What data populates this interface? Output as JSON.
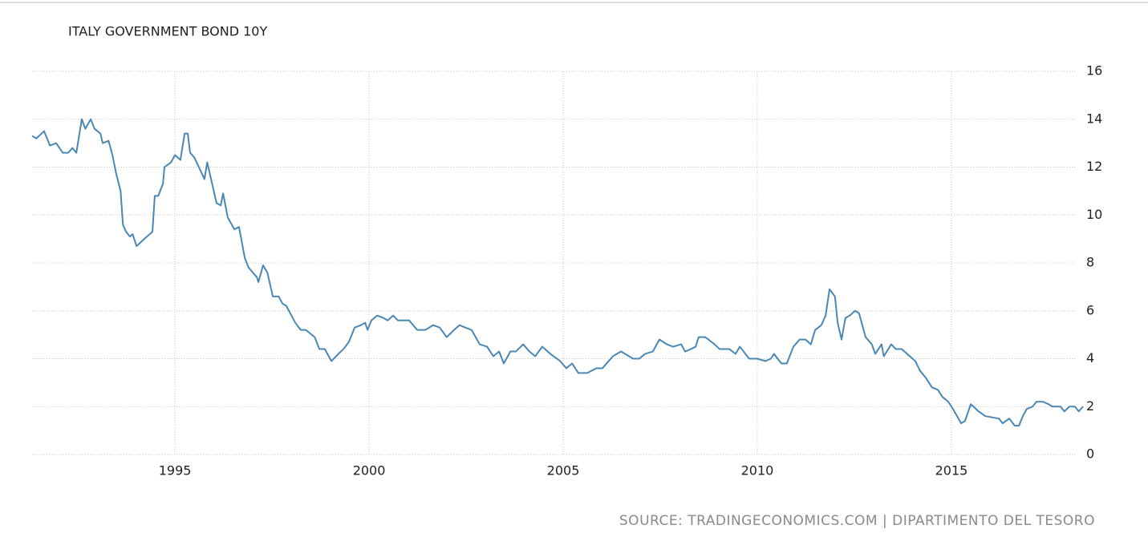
{
  "chart_data": {
    "type": "line",
    "title": "ITALY GOVERNMENT BOND 10Y",
    "source": "SOURCE: TRADINGECONOMICS.COM | DIPARTIMENTO DEL TESORO",
    "x": [
      1991.32,
      1991.43,
      1991.63,
      1991.78,
      1991.94,
      1992.11,
      1992.25,
      1992.36,
      1992.46,
      1992.6,
      1992.69,
      1992.83,
      1992.93,
      1993.08,
      1993.14,
      1993.29,
      1993.39,
      1993.49,
      1993.6,
      1993.66,
      1993.74,
      1993.84,
      1993.91,
      1994.01,
      1994.21,
      1994.42,
      1994.48,
      1994.57,
      1994.69,
      1994.73,
      1994.9,
      1995.0,
      1995.14,
      1995.25,
      1995.33,
      1995.39,
      1995.5,
      1995.76,
      1995.83,
      1995.93,
      1996.07,
      1996.18,
      1996.24,
      1996.36,
      1996.53,
      1996.65,
      1996.8,
      1996.9,
      1997.11,
      1997.15,
      1997.27,
      1997.38,
      1997.52,
      1997.67,
      1997.77,
      1997.87,
      1998.1,
      1998.24,
      1998.37,
      1998.6,
      1998.72,
      1998.86,
      1999.03,
      1999.21,
      1999.34,
      1999.48,
      1999.63,
      1999.79,
      1999.9,
      1999.96,
      2000.06,
      2000.21,
      2000.37,
      2000.48,
      2000.62,
      2000.74,
      2000.89,
      2001.03,
      2001.24,
      2001.45,
      2001.65,
      2001.82,
      2002.0,
      2002.19,
      2002.33,
      2002.48,
      2002.64,
      2002.85,
      2003.04,
      2003.2,
      2003.35,
      2003.47,
      2003.64,
      2003.78,
      2003.97,
      2004.13,
      2004.28,
      2004.46,
      2004.67,
      2004.92,
      2005.08,
      2005.23,
      2005.39,
      2005.62,
      2005.85,
      2006.01,
      2006.28,
      2006.49,
      2006.8,
      2006.96,
      2007.11,
      2007.31,
      2007.48,
      2007.67,
      2007.83,
      2008.04,
      2008.14,
      2008.29,
      2008.41,
      2008.49,
      2008.66,
      2008.9,
      2009.03,
      2009.28,
      2009.44,
      2009.55,
      2009.79,
      2010.0,
      2010.21,
      2010.35,
      2010.43,
      2010.62,
      2010.76,
      2010.93,
      2011.09,
      2011.24,
      2011.38,
      2011.49,
      2011.65,
      2011.76,
      2011.86,
      2012.0,
      2012.07,
      2012.17,
      2012.27,
      2012.38,
      2012.52,
      2012.62,
      2012.79,
      2012.95,
      2013.04,
      2013.2,
      2013.26,
      2013.45,
      2013.57,
      2013.72,
      2013.93,
      2014.07,
      2014.19,
      2014.34,
      2014.5,
      2014.65,
      2014.77,
      2014.92,
      2015.04,
      2015.25,
      2015.35,
      2015.5,
      2015.7,
      2015.87,
      2016.22,
      2016.32,
      2016.49,
      2016.63,
      2016.74,
      2016.84,
      2016.94,
      2017.09,
      2017.19,
      2017.36,
      2017.5,
      2017.6,
      2017.81,
      2017.91,
      2018.04,
      2018.18,
      2018.28,
      2018.39
    ],
    "series": [
      {
        "name": "Italy Government Bond 10Y",
        "color": "#4b87b5",
        "values": [
          13.3,
          13.2,
          13.5,
          12.9,
          13.0,
          12.6,
          12.6,
          12.8,
          12.6,
          14.0,
          13.6,
          14.0,
          13.6,
          13.4,
          13.0,
          13.1,
          12.5,
          11.7,
          11.0,
          9.6,
          9.3,
          9.1,
          9.2,
          8.7,
          9.0,
          9.3,
          10.8,
          10.8,
          11.3,
          12.0,
          12.2,
          12.5,
          12.3,
          13.4,
          13.4,
          12.6,
          12.4,
          11.5,
          12.2,
          11.5,
          10.5,
          10.4,
          10.9,
          9.9,
          9.4,
          9.5,
          8.2,
          7.8,
          7.4,
          7.2,
          7.9,
          7.6,
          6.6,
          6.6,
          6.3,
          6.2,
          5.5,
          5.2,
          5.2,
          4.9,
          4.4,
          4.4,
          3.9,
          4.2,
          4.4,
          4.7,
          5.3,
          5.4,
          5.5,
          5.2,
          5.6,
          5.8,
          5.7,
          5.6,
          5.8,
          5.6,
          5.6,
          5.6,
          5.2,
          5.2,
          5.4,
          5.3,
          4.9,
          5.2,
          5.4,
          5.3,
          5.2,
          4.6,
          4.5,
          4.1,
          4.3,
          3.8,
          4.3,
          4.3,
          4.6,
          4.3,
          4.1,
          4.5,
          4.2,
          3.9,
          3.6,
          3.8,
          3.4,
          3.4,
          3.6,
          3.6,
          4.1,
          4.3,
          4.0,
          4.0,
          4.2,
          4.3,
          4.8,
          4.6,
          4.5,
          4.6,
          4.3,
          4.4,
          4.5,
          4.9,
          4.9,
          4.6,
          4.4,
          4.4,
          4.2,
          4.5,
          4.0,
          4.0,
          3.9,
          4.0,
          4.2,
          3.8,
          3.8,
          4.5,
          4.8,
          4.8,
          4.6,
          5.2,
          5.4,
          5.8,
          6.9,
          6.6,
          5.5,
          4.8,
          5.7,
          5.8,
          6.0,
          5.9,
          4.9,
          4.6,
          4.2,
          4.6,
          4.1,
          4.6,
          4.4,
          4.4,
          4.1,
          3.9,
          3.5,
          3.2,
          2.8,
          2.7,
          2.4,
          2.2,
          1.9,
          1.3,
          1.4,
          2.1,
          1.8,
          1.6,
          1.5,
          1.3,
          1.5,
          1.2,
          1.2,
          1.6,
          1.9,
          2.0,
          2.2,
          2.2,
          2.1,
          2.0,
          2.0,
          1.8,
          2.0,
          2.0,
          1.8,
          2.0
        ]
      }
    ],
    "xlim": [
      1991.32,
      2018.39
    ],
    "xticks": [
      1995,
      2000,
      2005,
      2010,
      2015
    ],
    "ylim": [
      0,
      16
    ],
    "yticks": [
      0,
      2,
      4,
      6,
      8,
      10,
      12,
      14,
      16
    ],
    "grid": true
  }
}
